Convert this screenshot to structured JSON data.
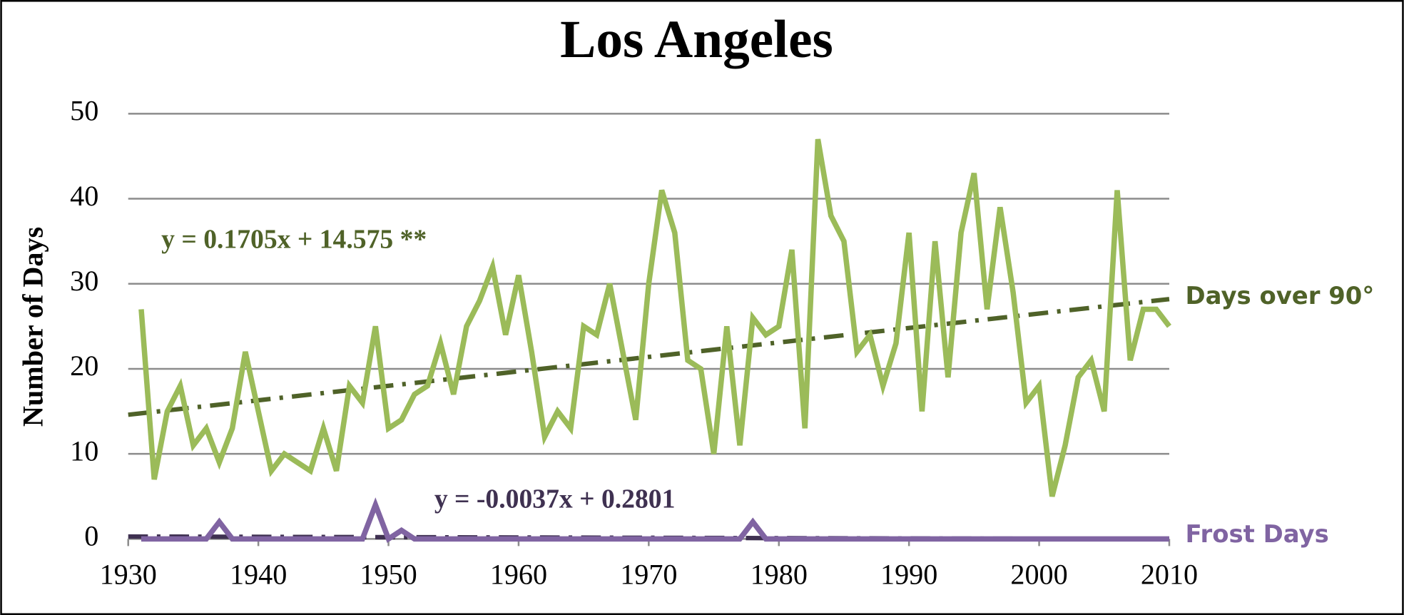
{
  "chart_data": {
    "type": "line",
    "title": "Los Angeles",
    "y_label": "Number of Days",
    "x": [
      1931,
      1932,
      1933,
      1934,
      1935,
      1936,
      1937,
      1938,
      1939,
      1940,
      1941,
      1942,
      1943,
      1944,
      1945,
      1946,
      1947,
      1948,
      1949,
      1950,
      1951,
      1952,
      1953,
      1954,
      1955,
      1956,
      1957,
      1958,
      1959,
      1960,
      1961,
      1962,
      1963,
      1964,
      1965,
      1966,
      1967,
      1968,
      1969,
      1970,
      1971,
      1972,
      1973,
      1974,
      1975,
      1976,
      1977,
      1978,
      1979,
      1980,
      1981,
      1982,
      1983,
      1984,
      1985,
      1986,
      1987,
      1988,
      1989,
      1990,
      1991,
      1992,
      1993,
      1994,
      1995,
      1996,
      1997,
      1998,
      1999,
      2000,
      2001,
      2002,
      2003,
      2004,
      2005,
      2006,
      2007,
      2008,
      2009,
      2010
    ],
    "series": [
      {
        "name": "Days over 90°",
        "color": "#9bbb59",
        "label_color": "#4f6228",
        "values": [
          27,
          7,
          15,
          18,
          11,
          13,
          9,
          13,
          22,
          15,
          8,
          10,
          9,
          8,
          13,
          8,
          18,
          16,
          25,
          13,
          14,
          17,
          18,
          23,
          17,
          25,
          28,
          32,
          24,
          31,
          22,
          12,
          15,
          13,
          25,
          24,
          30,
          22,
          14,
          30,
          41,
          36,
          21,
          20,
          10,
          25,
          11,
          26,
          24,
          25,
          34,
          13,
          47,
          38,
          35,
          22,
          24,
          18,
          23,
          36,
          15,
          35,
          19,
          36,
          43,
          27,
          39,
          29,
          16,
          18,
          5,
          11,
          19,
          21,
          15,
          41,
          21,
          27,
          27,
          25
        ]
      },
      {
        "name": "Frost Days",
        "color": "#8064a2",
        "label_color": "#8064a2",
        "values": [
          0,
          0,
          0,
          0,
          0,
          0,
          2,
          0,
          0,
          0,
          0,
          0,
          0,
          0,
          0,
          0,
          0,
          0,
          4,
          0,
          1,
          0,
          0,
          0,
          0,
          0,
          0,
          0,
          0,
          0,
          0,
          0,
          0,
          0,
          0,
          0,
          0,
          0,
          0,
          0,
          0,
          0,
          0,
          0,
          0,
          0,
          0,
          2,
          0,
          0,
          0,
          0,
          0,
          0,
          0,
          0,
          0,
          0,
          0,
          0,
          0,
          0,
          0,
          0,
          0,
          0,
          0,
          0,
          0,
          0,
          0,
          0,
          0,
          0,
          0,
          0,
          0,
          0,
          0,
          0
        ]
      }
    ],
    "trendlines": [
      {
        "label": "y = 0.1705x + 14.575 **",
        "color": "#4f6228",
        "label_color": "#4f6228",
        "x": [
          1930,
          2010
        ],
        "values": [
          14.6,
          28.2
        ]
      },
      {
        "label": "y = -0.0037x + 0.2801",
        "color": "#3f3151",
        "label_color": "#3f3151",
        "x": [
          1930,
          2010
        ],
        "values": [
          0.28,
          -0.02
        ]
      }
    ],
    "xlim": [
      1930,
      2010
    ],
    "xticks": [
      1930,
      1940,
      1950,
      1960,
      1970,
      1980,
      1990,
      2000,
      2010
    ],
    "ylim": [
      0,
      50
    ],
    "yticks": [
      0,
      10,
      20,
      30,
      40,
      50
    ],
    "grid": true
  }
}
